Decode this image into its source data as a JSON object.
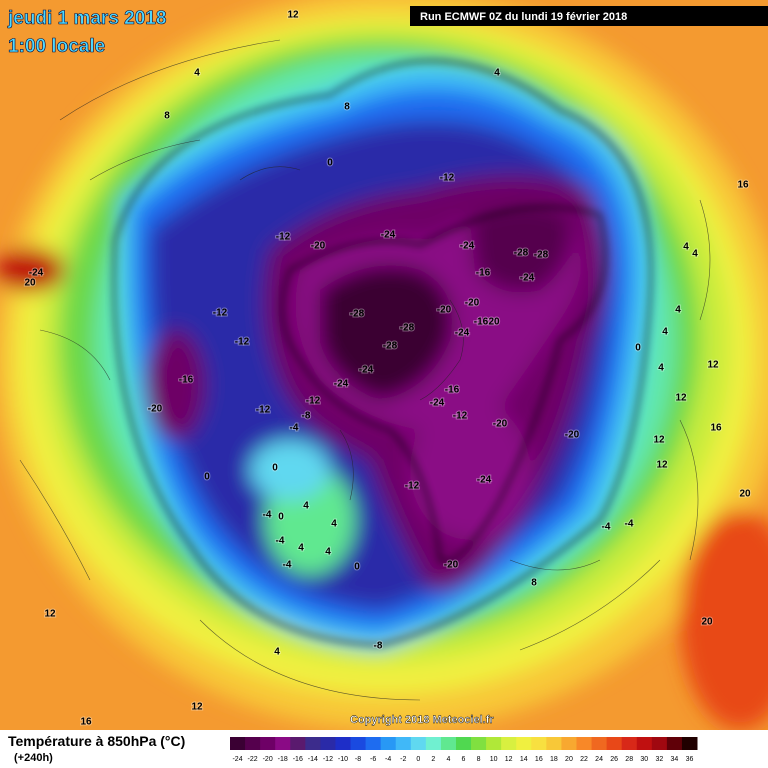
{
  "header": {
    "date": "jeudi 1 mars 2018",
    "time": "1:00 locale",
    "run": "Run ECMWF 0Z du lundi 19 février 2018"
  },
  "copyright": "Copyright 2018 Meteociel.fr",
  "legend": {
    "title": "Température à 850hPa (°C)",
    "lead": "(+240h)",
    "ticks": [
      -24,
      -22,
      -20,
      -18,
      -16,
      -14,
      -12,
      -10,
      -8,
      -6,
      -4,
      -2,
      0,
      2,
      4,
      6,
      8,
      10,
      12,
      14,
      16,
      18,
      20,
      22,
      24,
      26,
      28,
      30,
      32,
      34,
      36
    ],
    "colors": [
      "#3a0033",
      "#55004d",
      "#6e0066",
      "#8a0a85",
      "#5a1a6e",
      "#3c2c8c",
      "#2a2aa8",
      "#1e2ec8",
      "#1a4ae0",
      "#1e6cf0",
      "#2898f5",
      "#40b8f8",
      "#60d8f0",
      "#70f0d0",
      "#60e890",
      "#50d850",
      "#80e040",
      "#b0e838",
      "#d8f040",
      "#f0f040",
      "#f8e040",
      "#f8c838",
      "#f8a830",
      "#f88828",
      "#f06820",
      "#e84818",
      "#d82818",
      "#c01010",
      "#a00810",
      "#600008",
      "#200000"
    ]
  },
  "contour_labels": [
    12,
    4,
    8,
    8,
    0,
    4,
    -12,
    -12,
    -20,
    -24,
    -24,
    -28,
    -28,
    -24,
    -16,
    -20,
    -28,
    -28,
    -20,
    -24,
    -16,
    20,
    -28,
    -24,
    -24,
    -16,
    -24,
    -12,
    -20,
    -20,
    -12,
    -12,
    -16,
    -20,
    -12,
    -12,
    -8,
    -4,
    0,
    0,
    -24,
    -12,
    4,
    -4,
    0,
    4,
    -4,
    4,
    4,
    -4,
    0,
    -20,
    -4,
    -4,
    8,
    -8,
    4,
    12,
    16,
    12,
    20,
    20,
    16,
    12,
    12,
    12,
    12,
    4,
    4,
    0,
    4,
    4,
    16,
    -24,
    20,
    4
  ]
}
